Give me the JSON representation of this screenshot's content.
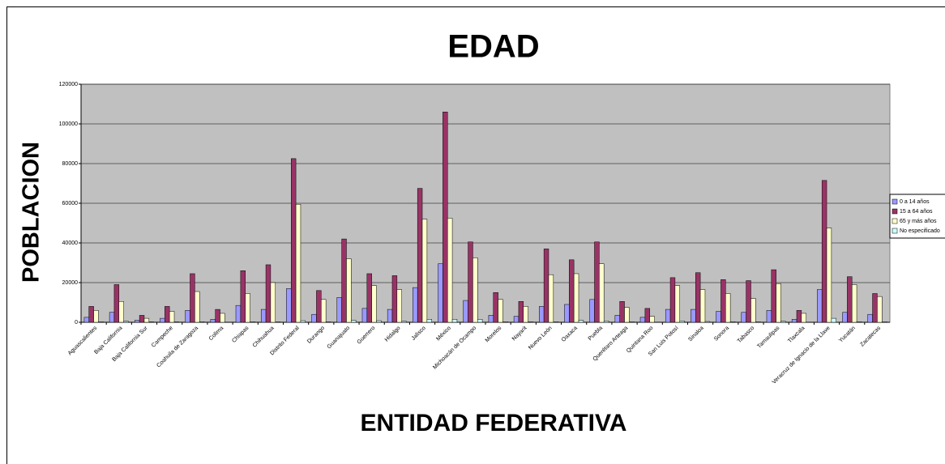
{
  "chart_data": {
    "type": "bar",
    "title": "EDAD",
    "y_label": "POBLACION",
    "x_label": "ENTIDAD FEDERATIVA",
    "categories": [
      "Aguascalientes",
      "Baja California",
      "Baja California Sur",
      "Campeche",
      "Coahuila de Zaragoza",
      "Colima",
      "Chiapas",
      "Chihuahua",
      "Distrito Federal",
      "Durango",
      "Guanajuato",
      "Guerrero",
      "Hidalgo",
      "Jalisco",
      "México",
      "Michoacán de Ocampo",
      "Morelos",
      "Nayarit",
      "Nuevo León",
      "Oaxaca",
      "Puebla",
      "Querétaro Arteaga",
      "Quintana Roo",
      "San Luis Potosí",
      "Sinaloa",
      "Sonora",
      "Tabasco",
      "Tamaulipas",
      "Tlaxcala",
      "Veracruz de Ignacio de la Llave",
      "Yucatán",
      "Zacatecas"
    ],
    "series": [
      {
        "name": "0 a 14 años",
        "color": "#9999ff",
        "values": [
          2500,
          5000,
          1000,
          2000,
          6000,
          1500,
          8500,
          6500,
          17000,
          4000,
          12500,
          7000,
          6500,
          17500,
          29500,
          11000,
          3500,
          3000,
          8000,
          9000,
          11500,
          3500,
          2500,
          6500,
          6500,
          5500,
          5000,
          6000,
          1500,
          16500,
          5000,
          4000
        ]
      },
      {
        "name": "15 a 64 años",
        "color": "#993366",
        "values": [
          8000,
          19000,
          3500,
          8000,
          24500,
          6500,
          26000,
          29000,
          82500,
          16000,
          42000,
          24500,
          23500,
          67500,
          106000,
          40500,
          15000,
          10500,
          37000,
          31500,
          40500,
          10500,
          7000,
          22500,
          25000,
          21500,
          21000,
          26500,
          6000,
          71500,
          23000,
          14500
        ]
      },
      {
        "name": "65 y más años",
        "color": "#ffffcc",
        "values": [
          6000,
          10500,
          2000,
          5500,
          15500,
          4500,
          14500,
          20000,
          59500,
          11500,
          32000,
          18500,
          16500,
          52000,
          52500,
          32500,
          11500,
          8000,
          24000,
          24500,
          29500,
          7500,
          3000,
          18500,
          16500,
          14500,
          12000,
          19500,
          4500,
          47500,
          19000,
          13000
        ]
      },
      {
        "name": "No especificado",
        "color": "#ccffff",
        "values": [
          300,
          500,
          200,
          200,
          300,
          100,
          300,
          300,
          800,
          200,
          1000,
          800,
          500,
          1500,
          1500,
          1500,
          300,
          200,
          300,
          1000,
          700,
          300,
          100,
          700,
          400,
          300,
          300,
          500,
          100,
          2000,
          300,
          300
        ]
      }
    ],
    "ylim": [
      0,
      120000
    ],
    "yticks": [
      0,
      20000,
      40000,
      60000,
      80000,
      100000,
      120000
    ],
    "grid": true,
    "plot_background": "#c0c0c0",
    "legend": "right"
  }
}
